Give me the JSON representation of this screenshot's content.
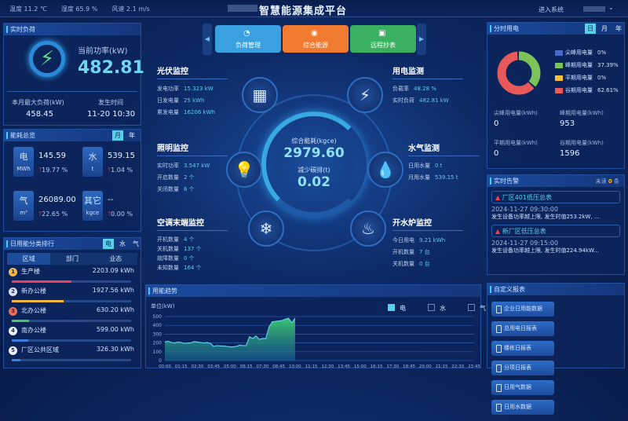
{
  "topbar": {
    "weather": [
      "温度 11.2 ℃",
      "湿度 65.9 %",
      "风速 2.1 m/s"
    ],
    "title": "智慧能源集成平台",
    "enter": "进入系统"
  },
  "realtime": {
    "title": "实时负荷",
    "power_label": "当前功率(kW)",
    "power": "482.81",
    "max_label": "本月最大负荷(kW)",
    "max": "458.45",
    "time_label": "发生时间",
    "time": "11-20 10:30"
  },
  "overview": {
    "title": "能耗总览",
    "toggles": [
      "月",
      "年"
    ],
    "items": [
      {
        "name": "电",
        "unit": "MWh",
        "value": "145.59",
        "change": "19.77 %"
      },
      {
        "name": "水",
        "unit": "t",
        "value": "539.15",
        "change": "1.04 %"
      },
      {
        "name": "气",
        "unit": "m³",
        "value": "26089.00",
        "change": "22.65 %"
      },
      {
        "name": "其它",
        "unit": "kgce",
        "value": "--",
        "change": "0.00 %"
      }
    ]
  },
  "ranking": {
    "title": "日用能分类排行",
    "toggles": [
      "电",
      "水",
      "气"
    ],
    "tabs": [
      "区域",
      "部门",
      "业态"
    ],
    "items": [
      {
        "rank": "1",
        "name": "生产楼",
        "value": "2203.09 kWh",
        "kwh": 2203.09,
        "color": "#e8405a"
      },
      {
        "rank": "2",
        "name": "新办公楼",
        "value": "1927.56 kWh",
        "kwh": 1927.56,
        "color": "#f5b840"
      },
      {
        "rank": "3",
        "name": "北办公楼",
        "value": "630.20 kWh",
        "kwh": 630.2,
        "color": "#4cc46a"
      },
      {
        "rank": "4",
        "name": "南办公楼",
        "value": "599.00 kWh",
        "kwh": 599,
        "color": "#3a7fe0"
      },
      {
        "rank": "5",
        "name": "厂区公共区域",
        "value": "326.30 kWh",
        "kwh": 326.3,
        "color": "#3a7fe0"
      }
    ]
  },
  "nav": {
    "buttons": [
      {
        "label": "负荷管理",
        "color": "#3aa0e0"
      },
      {
        "label": "综合能源",
        "color": "#f07a30"
      },
      {
        "label": "远程抄表",
        "color": "#3bb060"
      }
    ]
  },
  "center": {
    "energy_label": "综合能耗(kgce)",
    "energy": "2979.60",
    "carbon_label": "减少碳排(t)",
    "carbon": "0.02"
  },
  "pv": {
    "title": "光伏监控",
    "rows": [
      [
        "发电功率",
        "15.323 kW"
      ],
      [
        "日发电量",
        "25 kWh"
      ],
      [
        "累发电量",
        "16206 kWh"
      ]
    ]
  },
  "elec": {
    "title": "用电监测",
    "rows": [
      [
        "负载率",
        "48.28 %"
      ],
      [
        "实时负荷",
        "482.81 kW"
      ]
    ]
  },
  "light": {
    "title": "照明监控",
    "rows": [
      [
        "实时功率",
        "3.547 kW"
      ],
      [
        "开启数量",
        "2 个"
      ],
      [
        "关闭数量",
        "6 个"
      ]
    ]
  },
  "water": {
    "title": "水气监测",
    "rows": [
      [
        "日用水量",
        "0 t"
      ],
      [
        "月用水量",
        "539.15 t"
      ]
    ]
  },
  "ac": {
    "title": "空调末端监控",
    "rows": [
      [
        "开机数量",
        "4 个"
      ],
      [
        "关机数量",
        "137 个"
      ],
      [
        "故障数量",
        "0 个"
      ],
      [
        "未知数量",
        "164 个"
      ]
    ]
  },
  "boiler": {
    "title": "开水炉监控",
    "rows": [
      [
        "今日用电",
        "9.21 kWh"
      ],
      [
        "开机数量",
        "7 台"
      ],
      [
        "关机数量",
        "0 台"
      ]
    ]
  },
  "tou": {
    "title": "分时用电",
    "toggles": [
      "日",
      "月",
      "年"
    ],
    "legend": [
      {
        "name": "尖峰用电量",
        "pct": "0%",
        "value": 0,
        "color": "#4a6cc8"
      },
      {
        "name": "峰期用电量",
        "pct": "37.39%",
        "value": 37.39,
        "color": "#7cc45a"
      },
      {
        "name": "平期用电量",
        "pct": "0%",
        "value": 0,
        "color": "#f5c040"
      },
      {
        "name": "谷期用电量",
        "pct": "62.61%",
        "value": 62.61,
        "color": "#e85a5a"
      }
    ],
    "stats": [
      [
        "尖峰用电量(kWh)",
        "0"
      ],
      [
        "峰期用电量(kWh)",
        "953"
      ],
      [
        "平期用电量(kWh)",
        "0"
      ],
      [
        "谷期用电量(kWh)",
        "1596"
      ]
    ]
  },
  "alarm": {
    "title": "实时告警",
    "unread_prefix": "未读",
    "unread": "0",
    "unread_suffix": "条",
    "items": [
      {
        "name": "厂区401低压总表",
        "time": "2024-11-27 09:30:00",
        "msg": "发生设备功率越上限, 发生时值253.2kW, ..."
      },
      {
        "name": "新厂区低压总表",
        "time": "2024-11-27 09:15:00",
        "msg": "发生设备功率越上限, 发生时值224.94kW..."
      }
    ]
  },
  "reports": {
    "title": "自定义报表",
    "items": [
      "企业日用能数据",
      "总用电日报表",
      "楼栋日报表",
      "分项日报表",
      "日用气数据",
      "日用水数据"
    ]
  },
  "chart_data": {
    "type": "area",
    "title": "用能趋势",
    "ylabel": "单位(kW)",
    "ylim": [
      0,
      500
    ],
    "yticks": [
      0,
      100,
      200,
      300,
      400,
      500
    ],
    "grid": true,
    "legend": [
      "电",
      "水",
      "气"
    ],
    "legend_placement": "top-right",
    "xticks": [
      "00:00",
      "01:15",
      "02:30",
      "03:45",
      "05:00",
      "06:15",
      "07:30",
      "08:45",
      "10:00",
      "11:15",
      "12:30",
      "13:45",
      "15:00",
      "16:15",
      "17:30",
      "18:45",
      "20:00",
      "21:15",
      "22:30",
      "23:45"
    ],
    "series": [
      {
        "name": "电",
        "color": "#5ccfe8",
        "x_start": "00:00",
        "x_step_min": 15,
        "values": [
          210,
          220,
          205,
          200,
          210,
          205,
          195,
          200,
          200,
          215,
          210,
          205,
          200,
          205,
          195,
          160,
          170,
          165,
          165,
          160,
          155,
          155,
          160,
          175,
          170,
          170,
          270,
          250,
          280,
          240,
          250,
          250,
          380,
          440,
          445,
          450,
          455,
          470,
          480,
          430,
          480
        ]
      }
    ]
  }
}
